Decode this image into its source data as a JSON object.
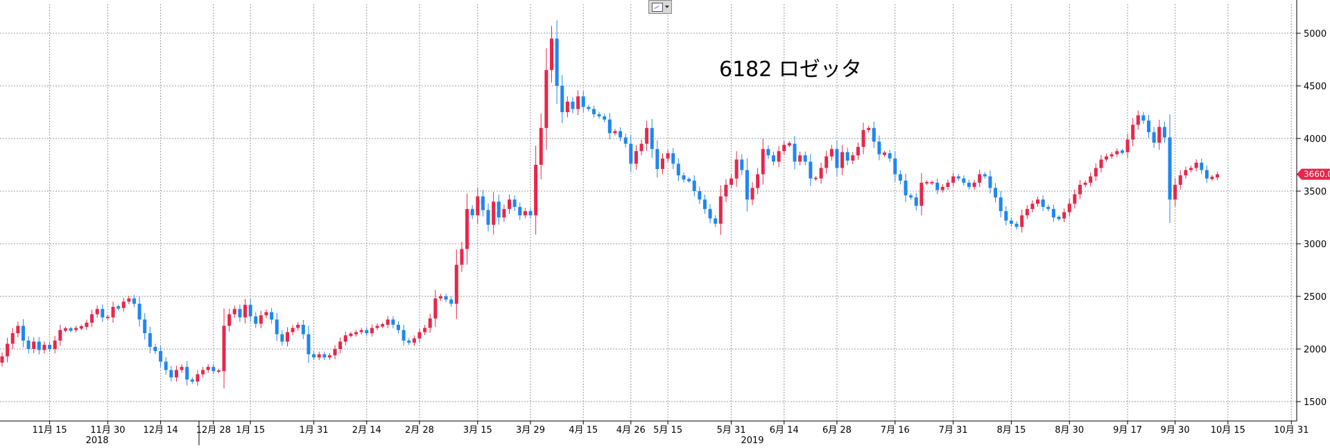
{
  "toolbar": {
    "chart_type_icon": "line-chart-icon"
  },
  "colors": {
    "up": "#e8264a",
    "down": "#1f86f2",
    "grid": "#999999",
    "axis": "#000000",
    "last_bg": "#e8264a"
  },
  "chart_data": {
    "type": "candlestick",
    "title": "6182 ロゼッタ",
    "ylim": [
      1350,
      5250
    ],
    "y_ticks": [
      1500,
      2000,
      2500,
      3000,
      3500,
      4000,
      4500,
      5000
    ],
    "grid": true,
    "last_value": 3660,
    "last_value_label": "3660.0",
    "x_ticks": [
      {
        "label": "11月 15",
        "index": 9
      },
      {
        "label": "11月 30",
        "index": 20
      },
      {
        "label": "12月 14",
        "index": 30
      },
      {
        "label": "12月 28",
        "index": 40
      },
      {
        "label": "1月 15",
        "index": 47
      },
      {
        "label": "1月 31",
        "index": 59
      },
      {
        "label": "2月 14",
        "index": 69
      },
      {
        "label": "2月 28",
        "index": 79
      },
      {
        "label": "3月 15",
        "index": 90
      },
      {
        "label": "3月 29",
        "index": 100
      },
      {
        "label": "4月 15",
        "index": 110
      },
      {
        "label": "4月 26",
        "index": 119
      },
      {
        "label": "5月 15",
        "index": 126
      },
      {
        "label": "5月 31",
        "index": 138
      },
      {
        "label": "6月 14",
        "index": 148
      },
      {
        "label": "6月 28",
        "index": 158
      },
      {
        "label": "7月 16",
        "index": 169
      },
      {
        "label": "7月 31",
        "index": 180
      },
      {
        "label": "8月 15",
        "index": 191
      },
      {
        "label": "8月 30",
        "index": 202
      },
      {
        "label": "9月 17",
        "index": 213
      },
      {
        "label": "9月 30",
        "index": 222
      },
      {
        "label": "10月 15",
        "index": 232
      },
      {
        "label": "10月 31",
        "index": 244
      }
    ],
    "year_labels": [
      {
        "label": "2018",
        "index": 18
      },
      {
        "label": "2019",
        "index": 142
      }
    ],
    "close": [
      1930,
      2050,
      2150,
      2220,
      2080,
      2000,
      2070,
      1990,
      2040,
      2000,
      2080,
      2180,
      2190,
      2180,
      2200,
      2210,
      2250,
      2330,
      2380,
      2300,
      2300,
      2400,
      2390,
      2450,
      2480,
      2430,
      2280,
      2150,
      2020,
      1980,
      1880,
      1800,
      1730,
      1800,
      1830,
      1710,
      1690,
      1760,
      1800,
      1830,
      1790,
      1790,
      2220,
      2330,
      2380,
      2300,
      2420,
      2310,
      2240,
      2320,
      2350,
      2280,
      2140,
      2070,
      2160,
      2200,
      2230,
      2140,
      1950,
      1920,
      1950,
      1920,
      1940,
      2000,
      2070,
      2130,
      2140,
      2160,
      2180,
      2150,
      2200,
      2220,
      2230,
      2280,
      2230,
      2180,
      2080,
      2060,
      2100,
      2160,
      2200,
      2290,
      2480,
      2500,
      2470,
      2430,
      2800,
      2950,
      3330,
      3270,
      3450,
      3320,
      3180,
      3400,
      3250,
      3330,
      3420,
      3350,
      3270,
      3310,
      3270,
      3750,
      4100,
      4650,
      4950,
      4500,
      4250,
      4350,
      4280,
      4400,
      4300,
      4280,
      4230,
      4210,
      4180,
      4050,
      4070,
      4010,
      3950,
      3760,
      3880,
      3950,
      4100,
      3900,
      3710,
      3810,
      3860,
      3760,
      3650,
      3610,
      3600,
      3500,
      3420,
      3330,
      3240,
      3190,
      3450,
      3560,
      3620,
      3800,
      3700,
      3420,
      3530,
      3660,
      3900,
      3840,
      3780,
      3880,
      3940,
      3950,
      3780,
      3840,
      3780,
      3620,
      3620,
      3720,
      3830,
      3900,
      3720,
      3870,
      3790,
      3840,
      3920,
      4080,
      4100,
      3970,
      3850,
      3860,
      3810,
      3660,
      3600,
      3460,
      3440,
      3360,
      3580,
      3580,
      3580,
      3510,
      3540,
      3580,
      3640,
      3620,
      3580,
      3540,
      3580,
      3660,
      3640,
      3530,
      3440,
      3310,
      3220,
      3190,
      3160,
      3270,
      3330,
      3380,
      3420,
      3350,
      3330,
      3250,
      3240,
      3300,
      3380,
      3470,
      3560,
      3580,
      3640,
      3720,
      3800,
      3830,
      3850,
      3880,
      3870,
      3990,
      4130,
      4220,
      4170,
      4060,
      3960,
      4110,
      4010,
      3420,
      3560,
      3650,
      3700,
      3720,
      3770,
      3700,
      3620,
      3630,
      3660
    ]
  }
}
